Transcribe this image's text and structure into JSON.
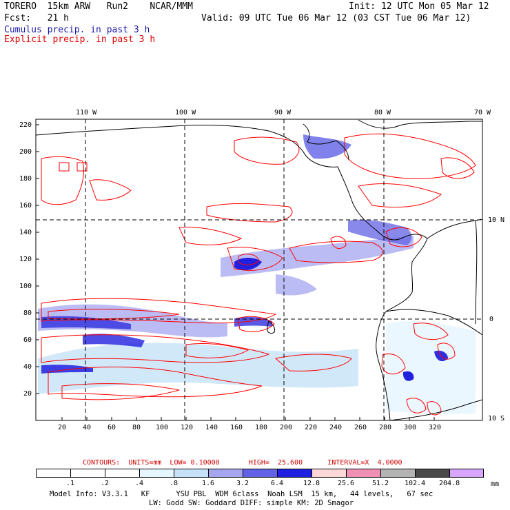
{
  "header": {
    "model": "TORERO  15km ARW   Run2    NCAR/MMM",
    "init": "Init: 12 UTC Mon 05 Mar 12",
    "fcst": "Fcst:   21 h",
    "valid": "Valid: 09 UTC Tue 06 Mar 12 (03 CST Tue 06 Mar 12)",
    "legend_cumulus": "Cumulus precip. in past 3 h",
    "legend_explicit": "Explicit precip. in past 3 h"
  },
  "map": {
    "top_lon_labels": [
      "110 W",
      "100 W",
      "90 W",
      "80 W",
      "70 W"
    ],
    "right_lat_labels": [
      "10 N",
      "0",
      "10 S"
    ],
    "y_ticks": [
      "220",
      "200",
      "180",
      "160",
      "140",
      "120",
      "100",
      "80",
      "60",
      "40",
      "20"
    ],
    "x_ticks": [
      "20",
      "40",
      "60",
      "80",
      "100",
      "120",
      "140",
      "160",
      "180",
      "200",
      "220",
      "240",
      "260",
      "280",
      "300",
      "320"
    ],
    "colors": {
      "cumulus": "#3030e0",
      "explicit": "#ff0000",
      "coast": "#000000"
    }
  },
  "contours_line": "CONTOURS:  UNITS=mm  LOW= 0.10000       HIGH=  25.600      INTERVAL=X  4.0000",
  "colorbar": {
    "labels": [
      ".1",
      ".2",
      ".4",
      ".8",
      "1.6",
      "3.2",
      "6.4",
      "12.8",
      "25.6",
      "51.2",
      "102.4",
      "204.8"
    ],
    "unit": "mm",
    "colors": [
      "#ffffff",
      "#ffffff",
      "#ffffff",
      "#e6f6ff",
      "#c6e2f8",
      "#a6a6f0",
      "#6262e6",
      "#2020e0",
      "#fcd8d8",
      "#f090b4",
      "#b4b4b4",
      "#484848",
      "#d8a6ff"
    ]
  },
  "footer": {
    "line1": "Model Info: V3.3.1   KF      YSU PBL  WDM 6class  Noah LSM  15 km,   44 levels,   67 sec",
    "line2": "LW: Godd SW: Goddard DIFF: simple KM: 2D Smagor"
  }
}
